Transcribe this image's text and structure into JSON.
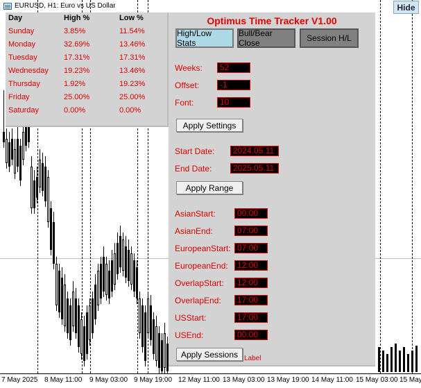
{
  "window": {
    "title": "EURUSD, H1:  Euro vs US Dollar",
    "hide_button": "Hide"
  },
  "stats": {
    "headers": {
      "day": "Day",
      "high": "High %",
      "low": "Low %"
    },
    "rows": [
      {
        "day": "Sunday",
        "high": "3.85%",
        "low": "11.54%"
      },
      {
        "day": "Monday",
        "high": "32.69%",
        "low": "13.46%"
      },
      {
        "day": "Tuesday",
        "high": "17.31%",
        "low": "17.31%"
      },
      {
        "day": "Wednesday",
        "high": "19.23%",
        "low": "13.46%"
      },
      {
        "day": "Thursday",
        "high": "1.92%",
        "low": "19.23%"
      },
      {
        "day": "Friday",
        "high": "25.00%",
        "low": "25.00%"
      },
      {
        "day": "Saturday",
        "high": "0.00%",
        "low": "0.00%"
      }
    ]
  },
  "panel": {
    "title": "Optimus Time Tracker V1.00",
    "tabs": [
      "High/Low Stats",
      "Bull/Bear Close",
      "Session H/L"
    ],
    "weeks_label": "Weeks:",
    "weeks_value": "52",
    "offset_label": "Offset:",
    "offset_value": "-1",
    "font_label": "Font:",
    "font_value": "10",
    "apply_settings": "Apply Settings",
    "start_date_label": "Start Date:",
    "start_date_value": "2024.05.11",
    "end_date_label": "End Date:",
    "end_date_value": "2025.05.11",
    "apply_range": "Apply Range",
    "sessions": [
      {
        "label": "AsianStart:",
        "value": "00:00"
      },
      {
        "label": "AsianEnd:",
        "value": "07:00"
      },
      {
        "label": "EuropeanStart:",
        "value": "07:00"
      },
      {
        "label": "EuropeanEnd:",
        "value": "12:00"
      },
      {
        "label": "OverlapStart:",
        "value": "12:00"
      },
      {
        "label": "OverlapEnd:",
        "value": "17:00"
      },
      {
        "label": "USStart:",
        "value": "17:00"
      },
      {
        "label": "USEnd:",
        "value": "00:00"
      }
    ],
    "apply_sessions": "Apply Sessions",
    "stray_label": "Label"
  },
  "time_axis": [
    "7 May 2025",
    "8 May 11:00",
    "9 May 03:00",
    "9 May 19:00",
    "12 May 11:00",
    "13 May 03:00",
    "13 May 19:00",
    "14 May 11:00",
    "15 May 03:00",
    "15 May"
  ]
}
